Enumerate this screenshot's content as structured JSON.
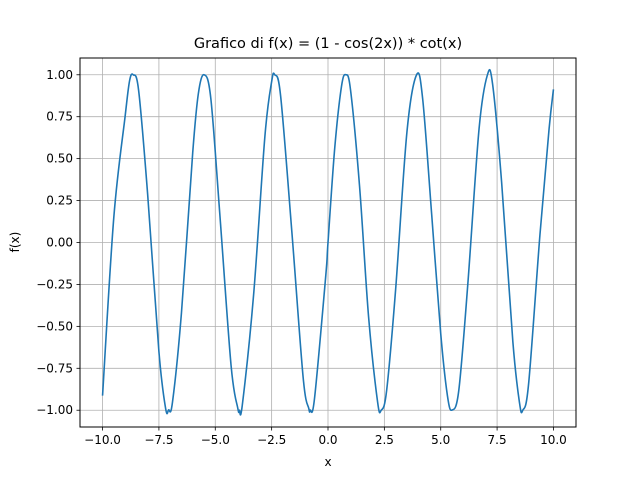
{
  "chart_data": {
    "type": "line",
    "title": "Grafico di f(x) = (1 - cos(2x)) * cot(x)",
    "xlabel": "x",
    "ylabel": "f(x)",
    "xlim": [
      -11.0,
      11.0
    ],
    "ylim": [
      -1.1,
      1.1
    ],
    "xticks": [
      -10.0,
      -7.5,
      -5.0,
      -2.5,
      0.0,
      2.5,
      5.0,
      7.5,
      10.0
    ],
    "xtick_labels": [
      "−10.0",
      "−7.5",
      "−5.0",
      "−2.5",
      "0.0",
      "2.5",
      "5.0",
      "7.5",
      "10.0"
    ],
    "yticks": [
      -1.0,
      -0.75,
      -0.5,
      -0.25,
      0.0,
      0.25,
      0.5,
      0.75,
      1.0
    ],
    "ytick_labels": [
      "−1.00",
      "−0.75",
      "−0.50",
      "−0.25",
      "0.00",
      "0.25",
      "0.50",
      "0.75",
      "1.00"
    ],
    "grid": true,
    "series": [
      {
        "color": "#1f77b4",
        "x": [
          -10.0,
          -9.5,
          -9.0,
          -8.8,
          -8.64,
          -8.4,
          -8.0,
          -7.5,
          -7.2,
          -7.07,
          -6.9,
          -6.5,
          -6.0,
          -5.75,
          -5.5,
          -5.2,
          -4.8,
          -4.3,
          -4.0,
          -3.93,
          -3.8,
          -3.3,
          -2.8,
          -2.5,
          -2.36,
          -2.1,
          -1.6,
          -1.1,
          -0.85,
          -0.79,
          -0.6,
          -0.1,
          0.0,
          0.3,
          0.6,
          0.79,
          1.0,
          1.4,
          1.8,
          2.2,
          2.36,
          2.6,
          3.0,
          3.5,
          3.93,
          4.2,
          4.6,
          5.0,
          5.3,
          5.5,
          5.8,
          6.2,
          6.7,
          7.07,
          7.3,
          7.7,
          8.2,
          8.5,
          8.64,
          8.9,
          9.4,
          9.8,
          10.0
        ],
        "y": [
          -0.913,
          0.151,
          0.751,
          0.965,
          1.0,
          0.907,
          0.288,
          -0.65,
          -0.991,
          -0.998,
          -0.954,
          -0.42,
          0.537,
          0.888,
          1.0,
          0.862,
          0.172,
          -0.732,
          -0.989,
          -1.0,
          -0.968,
          -0.312,
          0.631,
          0.959,
          1.0,
          0.872,
          0.058,
          -0.808,
          -0.991,
          -1.0,
          -0.932,
          -0.199,
          0.0,
          0.565,
          0.932,
          1.0,
          0.909,
          0.335,
          -0.443,
          -0.951,
          -1.0,
          -0.883,
          -0.279,
          0.657,
          1.0,
          0.855,
          0.165,
          -0.544,
          -0.916,
          -0.999,
          -0.883,
          -0.251,
          0.677,
          0.999,
          0.945,
          0.361,
          -0.593,
          -0.961,
          -1.0,
          -0.84,
          0.045,
          0.669,
          0.913
        ]
      }
    ]
  }
}
